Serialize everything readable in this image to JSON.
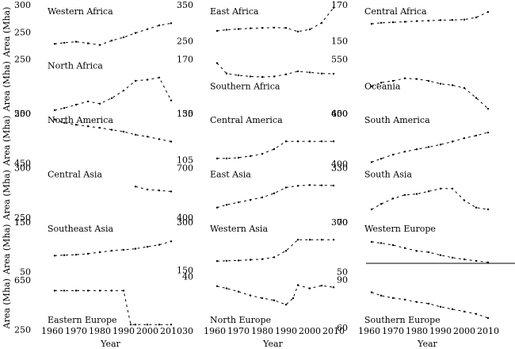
{
  "chart_data": {
    "type": "line",
    "rows": 6,
    "cols": 3,
    "x_ticks": [
      1960,
      1970,
      1980,
      1990,
      2000,
      2010
    ],
    "xlim": [
      1958,
      2013
    ],
    "xlabel": "Year",
    "ylabel": "Area (Mha)",
    "grid": false,
    "panels": [
      {
        "title": "Western Africa",
        "row": 0,
        "col": 0,
        "ylim": [
          200,
          300
        ],
        "yticks": [
          300,
          250
        ],
        "x": [
          1961,
          1965,
          1970,
          1975,
          1980,
          1985,
          1990,
          1995,
          2000,
          2005,
          2010
        ],
        "y": [
          228,
          230,
          232,
          229,
          226,
          234,
          240,
          248,
          255,
          262,
          266
        ]
      },
      {
        "title": "East Africa",
        "row": 0,
        "col": 1,
        "ylim": [
          200,
          350
        ],
        "yticks": [
          350,
          250
        ],
        "x": [
          1961,
          1965,
          1970,
          1975,
          1980,
          1985,
          1990,
          1995,
          2000,
          2005,
          2010
        ],
        "y": [
          278,
          281,
          283,
          285,
          286,
          287,
          286,
          276,
          282,
          300,
          342
        ]
      },
      {
        "title": "Central Africa",
        "row": 0,
        "col": 2,
        "ylim": [
          140,
          170
        ],
        "yticks": [
          170,
          150
        ],
        "x": [
          1961,
          1965,
          1970,
          1975,
          1980,
          1985,
          1990,
          1995,
          2000,
          2005,
          2010
        ],
        "y": [
          159.5,
          160,
          160.3,
          160.6,
          161,
          161.2,
          161.5,
          161.6,
          161.8,
          163,
          166
        ]
      },
      {
        "title": "North Africa",
        "row": 1,
        "col": 0,
        "ylim": [
          200,
          250
        ],
        "yticks": [
          250,
          200
        ],
        "x": [
          1961,
          1965,
          1970,
          1975,
          1980,
          1985,
          1990,
          1995,
          2000,
          2005,
          2010
        ],
        "y": [
          203,
          205,
          208,
          211,
          209,
          214,
          221,
          230,
          231,
          233,
          212
        ]
      },
      {
        "title": "Southern Africa",
        "row": 1,
        "col": 1,
        "ylim": [
          150,
          170
        ],
        "yticks": [
          170,
          150
        ],
        "x": [
          1961,
          1965,
          1970,
          1975,
          1980,
          1985,
          1990,
          1995,
          2000,
          2005,
          2010
        ],
        "y": [
          168.5,
          164.7,
          164,
          163.6,
          163.4,
          163.6,
          164.4,
          165.5,
          165.1,
          164.7,
          164.6
        ]
      },
      {
        "title": "Oceania",
        "row": 1,
        "col": 2,
        "ylim": [
          400,
          550
        ],
        "yticks": [
          550,
          400
        ],
        "x": [
          1961,
          1965,
          1970,
          1975,
          1980,
          1985,
          1990,
          1995,
          2000,
          2005,
          2010
        ],
        "y": [
          475,
          485,
          490,
          497,
          495,
          490,
          482,
          478,
          470,
          443,
          413
        ]
      },
      {
        "title": "North America",
        "row": 2,
        "col": 0,
        "ylim": [
          440,
          550
        ],
        "yticks": [
          550,
          450
        ],
        "x": [
          1961,
          1965,
          1970,
          1975,
          1980,
          1985,
          1990,
          1995,
          2000,
          2005,
          2010
        ],
        "y": [
          538,
          531,
          527,
          524,
          521,
          517,
          513,
          507,
          503,
          498,
          493
        ]
      },
      {
        "title": "Central America",
        "row": 2,
        "col": 1,
        "ylim": [
          100,
          135
        ],
        "yticks": [
          135,
          105
        ],
        "x": [
          1961,
          1965,
          1970,
          1975,
          1980,
          1985,
          1990,
          1995,
          2000,
          2005,
          2010
        ],
        "y": [
          106,
          106,
          106.5,
          107.5,
          109,
          112,
          117,
          117,
          117,
          117,
          117
        ]
      },
      {
        "title": "South America",
        "row": 2,
        "col": 2,
        "ylim": [
          380,
          650
        ],
        "yticks": [
          650,
          400
        ],
        "x": [
          1961,
          1965,
          1970,
          1975,
          1980,
          1985,
          1990,
          1995,
          2000,
          2005,
          2010
        ],
        "y": [
          408,
          425,
          445,
          460,
          472,
          483,
          495,
          510,
          527,
          540,
          555
        ]
      },
      {
        "title": "Central Asia",
        "row": 3,
        "col": 0,
        "ylim": [
          245,
          300
        ],
        "yticks": [
          300,
          250
        ],
        "x": [
          1995,
          2000,
          2005,
          2010
        ],
        "y": [
          281,
          278,
          277,
          276
        ]
      },
      {
        "title": "East Asia",
        "row": 3,
        "col": 1,
        "ylim": [
          370,
          700
        ],
        "yticks": [
          700,
          400
        ],
        "x": [
          1961,
          1965,
          1970,
          1975,
          1980,
          1985,
          1990,
          1995,
          2000,
          2005,
          2010
        ],
        "y": [
          458,
          475,
          490,
          505,
          520,
          545,
          580,
          590,
          595,
          593,
          592
        ]
      },
      {
        "title": "South Asia",
        "row": 3,
        "col": 2,
        "ylim": [
          300,
          330
        ],
        "yticks": [
          330,
          300
        ],
        "x": [
          1961,
          1965,
          1970,
          1975,
          1980,
          1985,
          1990,
          1995,
          2000,
          2005,
          2010
        ],
        "y": [
          307,
          310,
          313,
          315,
          315.5,
          317,
          318.5,
          318.5,
          312,
          308,
          307
        ]
      },
      {
        "title": "Southeast Asia",
        "row": 4,
        "col": 0,
        "ylim": [
          40,
          150
        ],
        "yticks": [
          150,
          50
        ],
        "x": [
          1961,
          1965,
          1970,
          1975,
          1980,
          1985,
          1990,
          1995,
          2000,
          2005,
          2010
        ],
        "y": [
          82,
          83,
          84,
          86,
          89,
          92,
          94,
          96,
          100,
          104,
          111
        ]
      },
      {
        "title": "Western Asia",
        "row": 4,
        "col": 1,
        "ylim": [
          130,
          300
        ],
        "yticks": [
          300,
          150
        ],
        "x": [
          1961,
          1965,
          1970,
          1975,
          1980,
          1985,
          1990,
          1995,
          2000,
          2005,
          2010
        ],
        "y": [
          178,
          179,
          180,
          182,
          184,
          190,
          210,
          245,
          245,
          245,
          245
        ]
      },
      {
        "title": "Western Europe",
        "row": 4,
        "col": 2,
        "ylim": [
          48,
          70
        ],
        "yticks": [
          70,
          50
        ],
        "x": [
          1961,
          1965,
          1970,
          1975,
          1980,
          1985,
          1990,
          1995,
          2000,
          2005,
          2010
        ],
        "y": [
          62,
          61.5,
          60.7,
          59.5,
          58.3,
          57.8,
          56.6,
          55.6,
          54.9,
          54.3,
          53.7
        ]
      },
      {
        "title": "Eastern Europe",
        "row": 5,
        "col": 0,
        "ylim": [
          240,
          680
        ],
        "yticks": [
          650,
          250
        ],
        "x": [
          1961,
          1965,
          1970,
          1975,
          1980,
          1985,
          1990,
          1993,
          1995,
          2000,
          2005,
          2010
        ],
        "y": [
          565,
          565,
          565,
          565,
          565,
          565,
          565,
          290,
          290,
          290,
          290,
          290
        ]
      },
      {
        "title": "North Europe",
        "row": 5,
        "col": 1,
        "ylim": [
          30,
          40
        ],
        "yticks": [
          40,
          30
        ],
        "x": [
          1961,
          1965,
          1970,
          1975,
          1980,
          1985,
          1990,
          1993,
          1995,
          2000,
          2005,
          2010
        ],
        "y": [
          38.2,
          37.8,
          37.2,
          36.5,
          36,
          35.6,
          34.8,
          36,
          38.4,
          37.8,
          38.3,
          38
        ]
      },
      {
        "title": "Southern Europe",
        "row": 5,
        "col": 2,
        "ylim": [
          58,
          92
        ],
        "yticks": [
          90,
          60
        ],
        "x": [
          1961,
          1965,
          1970,
          1975,
          1980,
          1985,
          1990,
          1995,
          2000,
          2005,
          2010
        ],
        "y": [
          82,
          80,
          78.5,
          77.5,
          76,
          75,
          73,
          71.5,
          70,
          68.5,
          66
        ]
      }
    ]
  }
}
